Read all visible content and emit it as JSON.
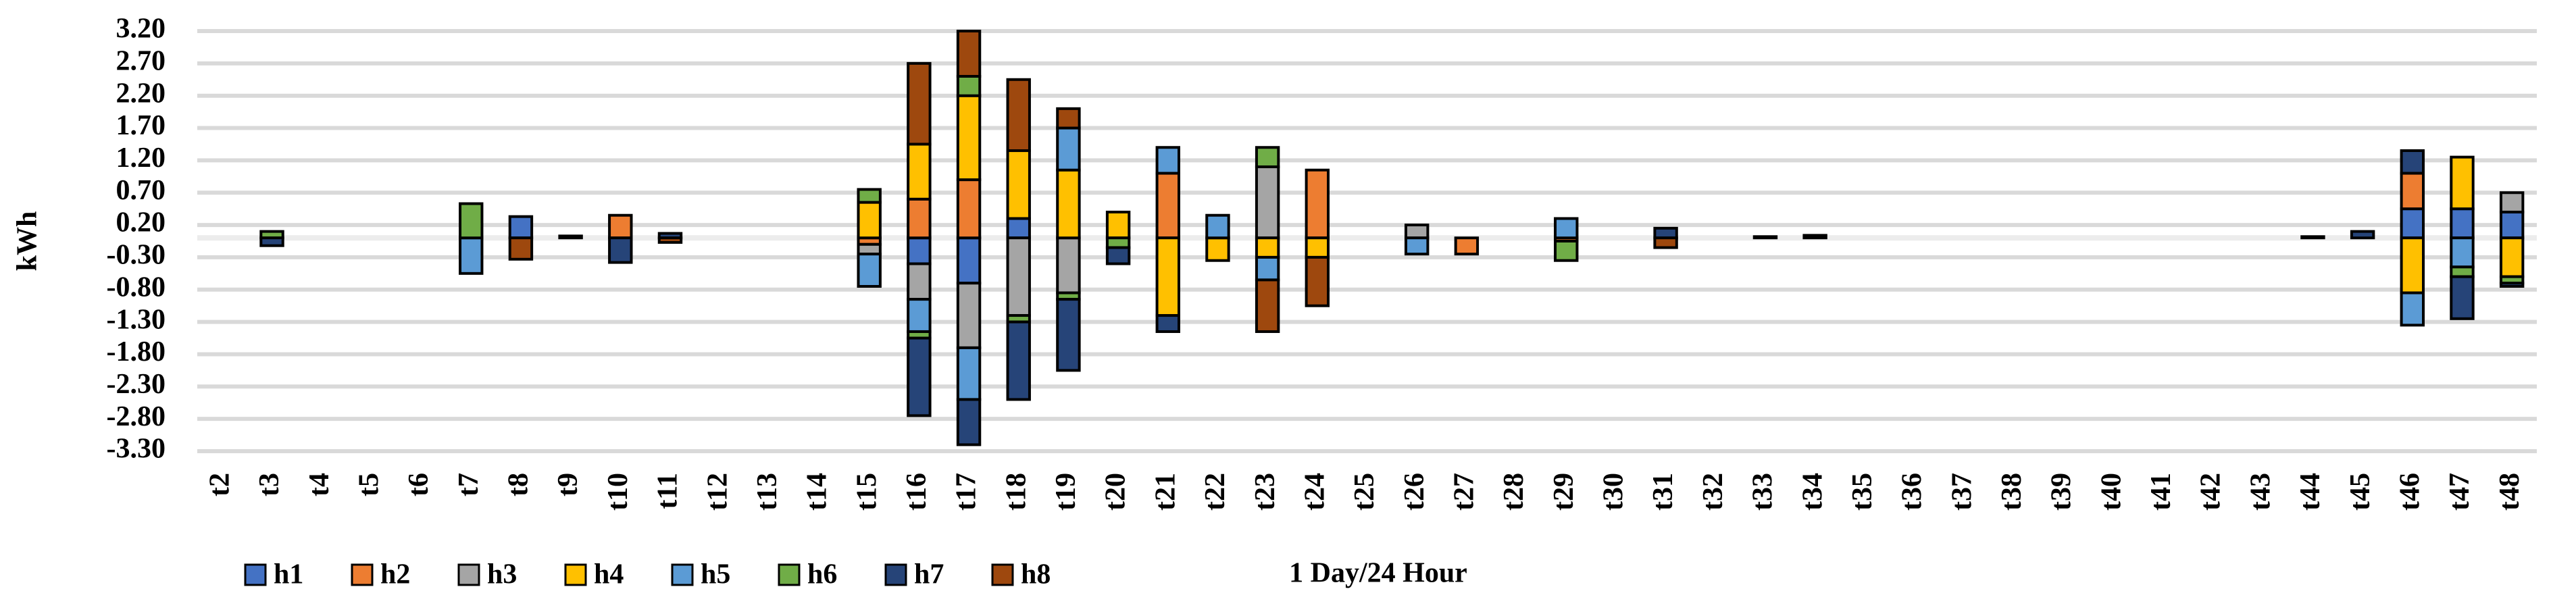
{
  "chart_data": {
    "type": "stacked_bar",
    "y_label": "kWh",
    "x_label": "1 Day/24 Hour",
    "categories": [
      "t2",
      "t3",
      "t4",
      "t5",
      "t6",
      "t7",
      "t8",
      "t9",
      "t10",
      "t11",
      "t12",
      "t13",
      "t14",
      "t15",
      "t16",
      "t17",
      "t18",
      "t19",
      "t20",
      "t21",
      "t22",
      "t23",
      "t24",
      "t25",
      "t26",
      "t27",
      "t28",
      "t29",
      "t30",
      "t31",
      "t32",
      "t33",
      "t34",
      "t35",
      "t36",
      "t37",
      "t38",
      "t39",
      "t40",
      "t41",
      "t42",
      "t43",
      "t44",
      "t45",
      "t46",
      "t47",
      "t48"
    ],
    "series": [
      {
        "name": "h1",
        "color": "#4472c4",
        "values": [
          0,
          0,
          0,
          0,
          0,
          0,
          0.33,
          0,
          0,
          0,
          0,
          0,
          0,
          0,
          -0.4,
          -0.7,
          0.3,
          0,
          0,
          0,
          0,
          0,
          0,
          0,
          0,
          0,
          0,
          0,
          0,
          0,
          0,
          0,
          0,
          0,
          0,
          0,
          0,
          0,
          0,
          0,
          0,
          0,
          0,
          0,
          0.45,
          0.45,
          0.4
        ]
      },
      {
        "name": "h2",
        "color": "#ed7d31",
        "values": [
          0,
          0,
          0,
          0,
          0,
          0,
          0,
          0,
          0.35,
          0,
          0,
          0,
          0,
          -0.1,
          0.6,
          0.9,
          0,
          0,
          0,
          1.0,
          0,
          0,
          1.05,
          0,
          0,
          -0.25,
          0,
          -0.05,
          0,
          0,
          0,
          0,
          0,
          0,
          0,
          0,
          0,
          0,
          0,
          0,
          0,
          0,
          0,
          0,
          0.55,
          0,
          0
        ]
      },
      {
        "name": "h3",
        "color": "#a5a5a5",
        "values": [
          0,
          0,
          0,
          0,
          0,
          0,
          0,
          0.03,
          0,
          0,
          0,
          0,
          0,
          -0.15,
          -0.55,
          -1.0,
          -1.2,
          -0.85,
          0,
          0,
          0,
          1.1,
          0,
          0,
          0.2,
          0,
          0,
          0,
          0,
          0,
          0,
          0.02,
          0.04,
          0,
          0,
          0,
          0,
          0,
          0,
          0,
          0,
          0,
          0.02,
          0,
          0,
          0,
          0.3
        ]
      },
      {
        "name": "h4",
        "color": "#ffc000",
        "values": [
          0,
          0,
          0,
          0,
          0,
          0,
          0,
          0,
          0,
          0,
          0,
          0,
          0,
          0.55,
          0.85,
          1.3,
          1.05,
          1.05,
          0.4,
          -1.2,
          -0.35,
          -0.3,
          -0.3,
          0,
          0,
          0,
          0,
          0,
          0,
          0,
          0,
          0,
          0,
          0,
          0,
          0,
          0,
          0,
          0,
          0,
          0,
          0,
          0,
          0,
          -0.85,
          0.8,
          -0.6
        ]
      },
      {
        "name": "h5",
        "color": "#5b9bd5",
        "values": [
          0,
          0,
          0,
          0,
          0,
          -0.55,
          0,
          0,
          0,
          0,
          0,
          0,
          0,
          -0.5,
          -0.5,
          -0.8,
          0,
          0.65,
          0,
          0.4,
          0.35,
          -0.35,
          0,
          0,
          -0.25,
          0,
          0,
          0.3,
          0,
          0,
          0,
          0,
          0,
          0,
          0,
          0,
          0,
          0,
          0,
          0,
          0,
          0,
          0,
          0,
          -0.5,
          -0.45,
          0
        ]
      },
      {
        "name": "h6",
        "color": "#70ad47",
        "values": [
          0,
          0.1,
          0,
          0,
          0,
          0.53,
          0,
          0,
          0,
          0,
          0,
          0,
          0,
          0.2,
          -0.1,
          0.3,
          -0.1,
          -0.1,
          -0.15,
          0,
          0,
          0.3,
          0,
          0,
          0,
          0,
          0,
          -0.3,
          0,
          0,
          0,
          0,
          0,
          0,
          0,
          0,
          0,
          0,
          0,
          0,
          0,
          0,
          0,
          0,
          0,
          -0.15,
          -0.1
        ]
      },
      {
        "name": "h7",
        "color": "#264478",
        "values": [
          0,
          -0.12,
          0,
          0,
          0,
          0,
          0,
          0,
          -0.38,
          0.07,
          0,
          0,
          0,
          0,
          -1.2,
          -0.7,
          -1.2,
          -1.1,
          -0.25,
          -0.25,
          0,
          0,
          0,
          0,
          0,
          0,
          0,
          0,
          0,
          0.15,
          0,
          0,
          0,
          0,
          0,
          0,
          0,
          0,
          0,
          0,
          0,
          0,
          0,
          0.1,
          0.35,
          -0.65,
          -0.05
        ]
      },
      {
        "name": "h8",
        "color": "#9e480e",
        "values": [
          0,
          0,
          0,
          0,
          0,
          0,
          -0.33,
          0,
          0,
          -0.07,
          0,
          0,
          0,
          0,
          1.25,
          0.7,
          1.1,
          0.3,
          0,
          0,
          0,
          -0.8,
          -0.75,
          0,
          0,
          0,
          0,
          0,
          0,
          -0.15,
          0,
          0,
          0,
          0,
          0,
          0,
          0,
          0,
          0,
          0,
          0,
          0,
          0,
          0,
          0,
          0,
          0
        ]
      }
    ],
    "ylim": [
      -3.3,
      3.2
    ],
    "yticks": [
      {
        "value": 3.2,
        "label": "3.20"
      },
      {
        "value": 2.7,
        "label": "2.70"
      },
      {
        "value": 2.2,
        "label": "2.20"
      },
      {
        "value": 1.7,
        "label": "1.70"
      },
      {
        "value": 1.2,
        "label": "1.20"
      },
      {
        "value": 0.7,
        "label": "0.70"
      },
      {
        "value": 0.2,
        "label": "0.20"
      },
      {
        "value": -0.3,
        "label": "-0.30"
      },
      {
        "value": -0.8,
        "label": "-0.80"
      },
      {
        "value": -1.3,
        "label": "-1.30"
      },
      {
        "value": -1.8,
        "label": "-1.80"
      },
      {
        "value": -2.3,
        "label": "-2.30"
      },
      {
        "value": -2.8,
        "label": "-2.80"
      },
      {
        "value": -3.3,
        "label": "-3.30"
      }
    ],
    "grid": true,
    "legend": "bottom-left"
  }
}
